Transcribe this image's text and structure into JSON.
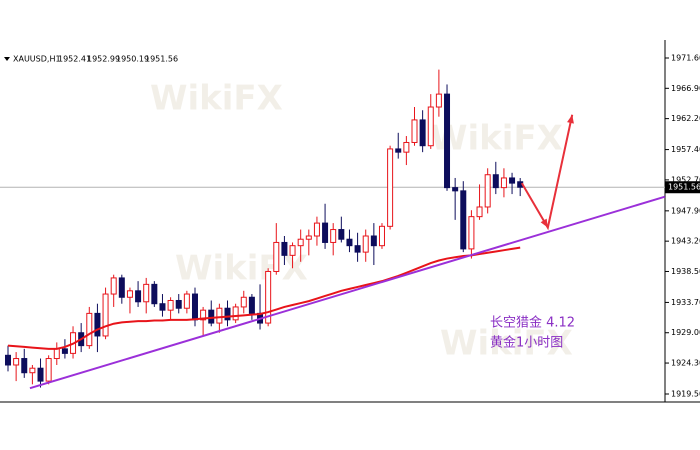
{
  "chart_data": {
    "type": "candlestick",
    "symbol": "XAUUSD,H1",
    "open": [
      1925.5,
      1924,
      1925,
      1922.8,
      1923.5,
      1921.5,
      1925,
      1926.5,
      1925.8,
      1929,
      1927,
      1932,
      1928.5,
      1935,
      1937.5,
      1934.5,
      1935.5,
      1933.8,
      1936.5,
      1933.5,
      1932.5,
      1934,
      1932.8,
      1935,
      1931,
      1932.5,
      1930.5,
      1932.8,
      1931,
      1933,
      1934.5,
      1932,
      1930.5,
      1938.5,
      1943,
      1941,
      1942.5,
      1943.5,
      1944,
      1946,
      1943,
      1945,
      1943.5,
      1942.5,
      1941.5,
      1944,
      1942.5,
      1945.5,
      1957.5,
      1957,
      1958.5,
      1962,
      1958,
      1964,
      1966,
      1951.5,
      1951,
      1942,
      1947,
      1948.5,
      1953.5,
      1951.5,
      1953,
      1952.41
    ],
    "high": [
      1927,
      1926,
      1926.5,
      1924,
      1925,
      1925.5,
      1927.5,
      1928,
      1930,
      1930.5,
      1933,
      1933.5,
      1936,
      1938,
      1938,
      1936,
      1937,
      1937.5,
      1937,
      1935,
      1934.5,
      1935,
      1935.5,
      1936,
      1933,
      1934,
      1933.5,
      1934,
      1933.5,
      1935.5,
      1935,
      1936.5,
      1939,
      1946,
      1944,
      1943,
      1945,
      1945,
      1947,
      1949,
      1946,
      1947,
      1945,
      1944.5,
      1945,
      1946,
      1946,
      1958,
      1960,
      1959.5,
      1964,
      1963.5,
      1966,
      1969.8,
      1967.5,
      1953,
      1952.5,
      1948,
      1952,
      1954.5,
      1955.5,
      1954.5,
      1953.8,
      1952.99
    ],
    "low": [
      1923,
      1921.5,
      1922,
      1921,
      1920.5,
      1921,
      1924,
      1925,
      1925,
      1926,
      1926.5,
      1926,
      1928,
      1933,
      1933.5,
      1932,
      1933,
      1932,
      1933,
      1931.5,
      1931,
      1932,
      1932,
      1930,
      1928.5,
      1930,
      1929,
      1930,
      1930.5,
      1932,
      1931,
      1929.5,
      1930,
      1938,
      1939.5,
      1939,
      1940,
      1941,
      1942.5,
      1942,
      1941,
      1943,
      1941.5,
      1940,
      1940,
      1939.5,
      1942,
      1945,
      1956,
      1955,
      1958,
      1957,
      1957.5,
      1962.5,
      1951,
      1946.5,
      1941.5,
      1940.5,
      1946.5,
      1947.5,
      1950.5,
      1950,
      1950.5,
      1950.19
    ],
    "close": [
      1924,
      1925,
      1922.8,
      1923.5,
      1921.5,
      1925,
      1926.5,
      1925.8,
      1929,
      1927,
      1932,
      1928.5,
      1935,
      1937.5,
      1934.5,
      1935.5,
      1933.8,
      1936.5,
      1933.5,
      1932.5,
      1934,
      1932.8,
      1935,
      1931,
      1932.5,
      1930.5,
      1932.8,
      1931,
      1933,
      1934.5,
      1932,
      1930.5,
      1938.5,
      1943,
      1941,
      1942.5,
      1943.5,
      1944,
      1946,
      1943,
      1945,
      1943.5,
      1942.5,
      1941.5,
      1944,
      1942.5,
      1945.5,
      1957.5,
      1957,
      1958.5,
      1962,
      1958,
      1964,
      1966,
      1951.5,
      1951,
      1942,
      1947,
      1948.5,
      1953.5,
      1951.5,
      1953,
      1952.2,
      1951.56
    ],
    "colors": {
      "up": "#e8141a",
      "down": "#0d0d5c"
    },
    "ma": {
      "color": "#e8141a",
      "values": [
        1927,
        1926.9,
        1926.8,
        1926.7,
        1926.6,
        1926.5,
        1926.5,
        1926.8,
        1927.3,
        1928,
        1928.8,
        1929.5,
        1930,
        1930.4,
        1930.6,
        1930.7,
        1930.8,
        1930.8,
        1930.9,
        1930.9,
        1931,
        1931,
        1931,
        1931.1,
        1931.2,
        1931.3,
        1931.4,
        1931.5,
        1931.6,
        1931.7,
        1931.8,
        1931.9,
        1932.2,
        1932.6,
        1933,
        1933.3,
        1933.6,
        1933.9,
        1934.3,
        1934.7,
        1935.1,
        1935.5,
        1935.8,
        1936.1,
        1936.4,
        1936.7,
        1937,
        1937.4,
        1937.8,
        1938.3,
        1938.8,
        1939.3,
        1939.8,
        1940.2,
        1940.5,
        1940.7,
        1940.9,
        1941,
        1941.2,
        1941.4,
        1941.6,
        1941.8,
        1942,
        1942.2
      ]
    },
    "trendline": {
      "color": "#9b30d9",
      "x": [
        2.7,
        80.8
      ],
      "y": [
        1920.4,
        1950.1
      ]
    },
    "arrow": {
      "color": "#e8303a",
      "x": [
        63.2,
        66.4,
        69.4
      ],
      "y": [
        1952.2,
        1945.3,
        1962.8
      ]
    },
    "last_price_color": "#b4b4b4",
    "annotations": [
      "长空猎金  4.12",
      "黄金1小时图"
    ],
    "annotation_color": "#8a2fc4",
    "watermark": "WikiFX",
    "ylim": [
      1918.57,
      1972.53
    ],
    "yticks": [
      {
        "value": 1971.6,
        "label": "1971.60"
      },
      {
        "value": 1966.9,
        "label": "1966.90"
      },
      {
        "value": 1962.2,
        "label": "1962.20"
      },
      {
        "value": 1957.4,
        "label": "1957.40"
      },
      {
        "value": 1952.7,
        "label": "1952.70"
      },
      {
        "value": 1947.9,
        "label": "1947.90"
      },
      {
        "value": 1943.2,
        "label": "1943.20"
      },
      {
        "value": 1938.5,
        "label": "1938.50"
      },
      {
        "value": 1933.7,
        "label": "1933.70"
      },
      {
        "value": 1929.0,
        "label": "1929.00"
      },
      {
        "value": 1924.3,
        "label": "1924.30"
      },
      {
        "value": 1919.5,
        "label": "1919.50"
      }
    ]
  }
}
